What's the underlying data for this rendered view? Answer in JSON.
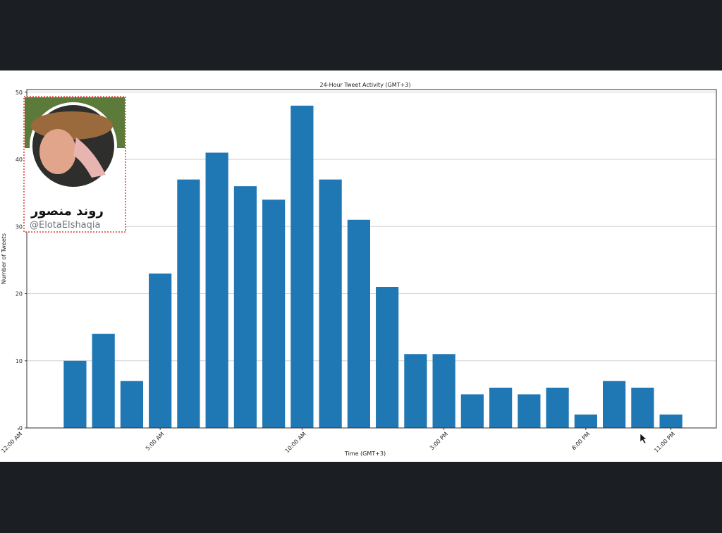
{
  "chart_data": {
    "type": "bar",
    "title": "24-Hour Tweet Activity (GMT+3)",
    "x_label": "Time (GMT+3)",
    "y_label": "Number of Tweets",
    "x": [
      2,
      3,
      4,
      5,
      6,
      7,
      8,
      9,
      10,
      11,
      12,
      13,
      14,
      15,
      16,
      17,
      18,
      19,
      20,
      21,
      22,
      23
    ],
    "values": [
      10,
      14,
      7,
      23,
      37,
      41,
      36,
      34,
      48,
      37,
      31,
      21,
      11,
      11,
      5,
      6,
      5,
      6,
      2,
      7,
      6,
      2
    ],
    "color": "#1f77b4",
    "xlim": [
      0.3,
      24.6
    ],
    "xticks": [
      {
        "value": 0,
        "label": "12:00 AM"
      },
      {
        "value": 5,
        "label": "5:00 AM"
      },
      {
        "value": 10,
        "label": "10:00 AM"
      },
      {
        "value": 15,
        "label": "3:00 PM"
      },
      {
        "value": 20,
        "label": "8:00 PM"
      },
      {
        "value": 23,
        "label": "11:00 PM"
      }
    ],
    "ylim": [
      0,
      50.4
    ],
    "yticks": [
      0,
      10,
      20,
      30,
      40,
      50
    ],
    "grid": true
  },
  "profile": {
    "name": "روند منصور",
    "handle": "@ElotaElshaqia"
  }
}
